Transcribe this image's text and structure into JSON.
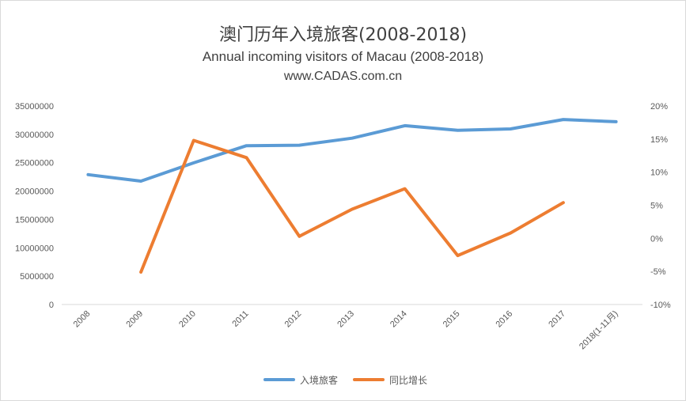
{
  "chart_data": {
    "type": "line",
    "title": "澳门历年入境旅客(2008-2018)",
    "subtitle": "Annual incoming visitors of Macau (2008-2018)",
    "source": "www.CADAS.com.cn",
    "categories": [
      "2008",
      "2009",
      "2010",
      "2011",
      "2012",
      "2013",
      "2014",
      "2015",
      "2016",
      "2017",
      "2018(1-11月)"
    ],
    "series": [
      {
        "name": "入境旅客",
        "axis": "left",
        "color": "#5B9BD5",
        "values": [
          22900000,
          21750000,
          24970000,
          28000000,
          28080000,
          29320000,
          31530000,
          30720000,
          30950000,
          32610000,
          32220000
        ]
      },
      {
        "name": "同比增长",
        "axis": "right",
        "color": "#ED7D31",
        "values": [
          null,
          -5.1,
          14.8,
          12.2,
          0.3,
          4.4,
          7.5,
          -2.6,
          0.8,
          5.4,
          null
        ]
      }
    ],
    "yleft": {
      "min": 0,
      "max": 35000000,
      "step": 5000000,
      "ticks": [
        "0",
        "5000000",
        "10000000",
        "15000000",
        "20000000",
        "25000000",
        "30000000",
        "35000000"
      ]
    },
    "yright": {
      "min": -10,
      "max": 20,
      "step": 5,
      "ticks": [
        "-10%",
        "-5%",
        "0%",
        "5%",
        "10%",
        "15%",
        "20%"
      ]
    },
    "legend": "bottom"
  }
}
